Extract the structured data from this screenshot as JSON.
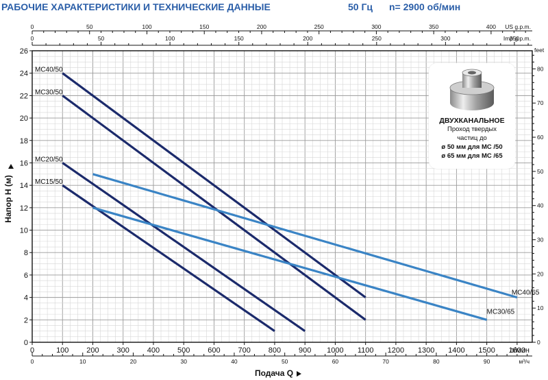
{
  "header": {
    "title": "РАБОЧИЕ ХАРАКТЕРИСТИКИ И ТЕХНИЧЕСКИЕ ДАННЫЕ",
    "frequency": "50 Гц",
    "speed": "n= 2900 об/мин"
  },
  "inset": {
    "title": "ДВУХКАНАЛЬНОЕ",
    "line1": "Проход твердых",
    "line2": "частиц до",
    "line3": "ø 50 мм для MC /50",
    "line4": "ø 65 мм для MC /65"
  },
  "chart_data": {
    "type": "line",
    "xlabel": "Подача Q",
    "ylabel": "Напор H (м)",
    "xlim": [
      0,
      1650
    ],
    "ylim": [
      0,
      26
    ],
    "x_ticks": [
      0,
      100,
      200,
      300,
      400,
      500,
      600,
      700,
      800,
      900,
      1000,
      1100,
      1200,
      1300,
      1400,
      1500,
      1600
    ],
    "x_unit": "л/мин",
    "y_ticks": [
      0,
      2,
      4,
      6,
      8,
      10,
      12,
      14,
      16,
      18,
      20,
      22,
      24,
      26
    ],
    "top_axis_us": {
      "unit": "US g.p.m.",
      "ticks": [
        0,
        50,
        100,
        150,
        200,
        250,
        300,
        350,
        400
      ]
    },
    "top_axis_imp": {
      "unit": "Imp g.p.m.",
      "ticks": [
        0,
        50,
        100,
        150,
        200,
        250,
        300,
        350
      ]
    },
    "bottom_axis_m3h": {
      "unit": "м³/ч",
      "ticks": [
        0,
        10,
        20,
        30,
        40,
        50,
        60,
        70,
        80,
        90
      ]
    },
    "right_axis_feet": {
      "unit": "feet",
      "ticks": [
        0,
        10,
        20,
        30,
        40,
        50,
        60,
        70,
        80
      ]
    },
    "grid": true,
    "series": [
      {
        "name": "MC40/50",
        "x": [
          100,
          1100
        ],
        "y": [
          24,
          4
        ],
        "color": "#1b2a6b"
      },
      {
        "name": "MC30/50",
        "x": [
          100,
          1100
        ],
        "y": [
          22,
          2
        ],
        "color": "#1b2a6b"
      },
      {
        "name": "MC20/50",
        "x": [
          100,
          900
        ],
        "y": [
          16,
          1
        ],
        "color": "#1b2a6b"
      },
      {
        "name": "MC15/50",
        "x": [
          100,
          800
        ],
        "y": [
          14,
          1
        ],
        "color": "#1b2a6b"
      },
      {
        "name": "MC40/65",
        "x": [
          200,
          1600
        ],
        "y": [
          15,
          4
        ],
        "color": "#3a84c5"
      },
      {
        "name": "MC30/65",
        "x": [
          200,
          1500
        ],
        "y": [
          12,
          2
        ],
        "color": "#3a84c5"
      }
    ]
  }
}
